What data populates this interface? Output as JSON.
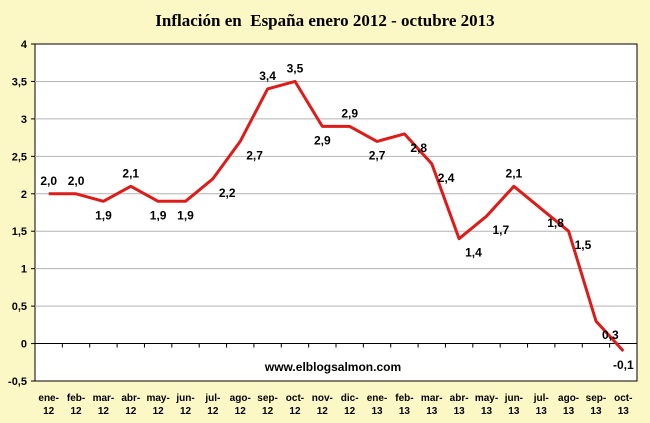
{
  "chart_data": {
    "type": "line",
    "title": "Inflación en  España enero 2012 - octubre 2013",
    "xlabel": "",
    "ylabel": "",
    "ylim": [
      -0.5,
      4
    ],
    "yticks": [
      -0.5,
      0,
      0.5,
      1,
      1.5,
      2,
      2.5,
      3,
      3.5,
      4
    ],
    "ytick_labels": [
      "-0,5",
      "0",
      "0,5",
      "1",
      "1,5",
      "2",
      "2,5",
      "3",
      "3,5",
      "4"
    ],
    "grid": "horizontal",
    "legend": "none",
    "categories": [
      [
        "ene-",
        "12"
      ],
      [
        "feb-",
        "12"
      ],
      [
        "mar-",
        "12"
      ],
      [
        "abr-",
        "12"
      ],
      [
        "may-",
        "12"
      ],
      [
        "jun-",
        "12"
      ],
      [
        "jul-",
        "12"
      ],
      [
        "ago-",
        "12"
      ],
      [
        "sep-",
        "12"
      ],
      [
        "oct-",
        "12"
      ],
      [
        "nov-",
        "12"
      ],
      [
        "dic-",
        "12"
      ],
      [
        "ene-",
        "13"
      ],
      [
        "feb-",
        "13"
      ],
      [
        "mar-",
        "13"
      ],
      [
        "abr-",
        "13"
      ],
      [
        "may-",
        "13"
      ],
      [
        "jun-",
        "13"
      ],
      [
        "jul-",
        "13"
      ],
      [
        "ago-",
        "13"
      ],
      [
        "sep-",
        "13"
      ],
      [
        "oct-",
        "13"
      ]
    ],
    "series": [
      {
        "values": [
          2.0,
          2.0,
          1.9,
          2.1,
          1.9,
          1.9,
          2.2,
          2.7,
          3.4,
          3.5,
          2.9,
          2.9,
          2.7,
          2.8,
          2.4,
          1.4,
          1.7,
          2.1,
          1.8,
          1.5,
          0.3,
          -0.1
        ],
        "labels": [
          "2,0",
          "2,0",
          "1,9",
          "2,1",
          "1,9",
          "1,9",
          "2,2",
          "2,7",
          "3,4",
          "3,5",
          "2,9",
          "2,9",
          "2,7",
          "2,8",
          "2,4",
          "1,4",
          "1,7",
          "2,1",
          "1,8",
          "1,5",
          "0,3",
          "-0,1"
        ],
        "label_pos": [
          "above",
          "above",
          "below",
          "above",
          "below",
          "below",
          "right",
          "right",
          "above",
          "above",
          "below",
          "above",
          "below",
          "right",
          "right",
          "right",
          "right",
          "above",
          "right",
          "right",
          "right",
          "below"
        ],
        "color": "#dd1c1a"
      }
    ],
    "annotation": "www.elblogsalmon.com",
    "colors": {
      "background": "#fcf8c5",
      "plot_area": "#ffffff",
      "grid": "#b4b4b4",
      "line": "#dd1c1a"
    }
  }
}
